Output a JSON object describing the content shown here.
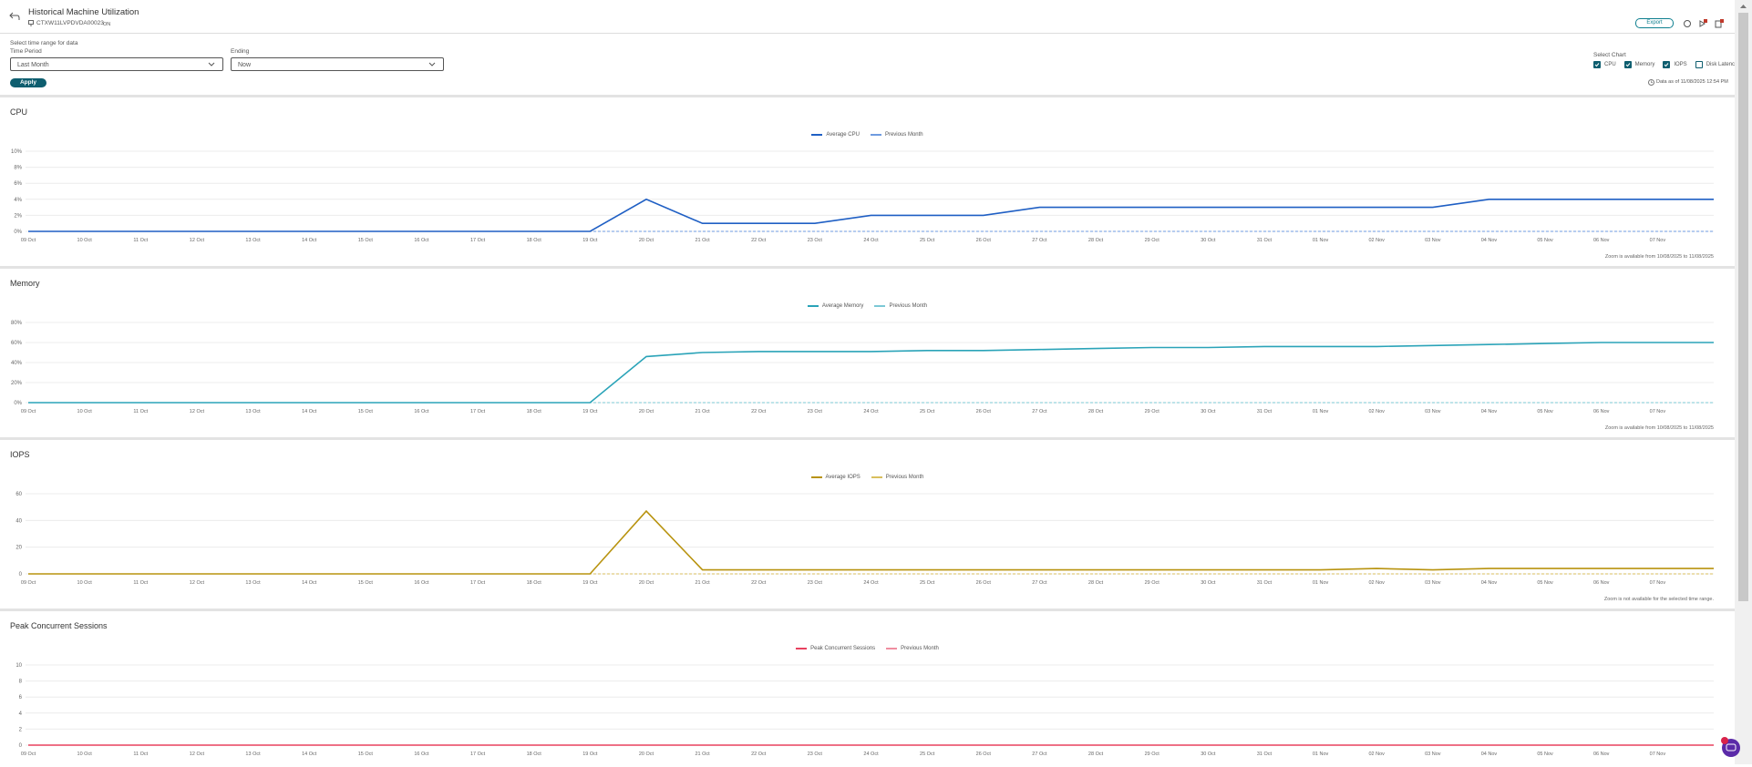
{
  "header": {
    "title": "Historical Machine Utilization",
    "machine": "CTXW11LVPDVDA00023",
    "state": "ON",
    "export": "Export"
  },
  "controls": {
    "prompt": "Select time range for data",
    "time_period": {
      "label": "Time Period",
      "value": "Last Month"
    },
    "ending": {
      "label": "Ending",
      "value": "Now"
    },
    "apply": "Apply",
    "select_chart": {
      "label": "Select Chart",
      "options": [
        {
          "label": "CPU",
          "checked": true
        },
        {
          "label": "Memory",
          "checked": true
        },
        {
          "label": "IOPS",
          "checked": true
        },
        {
          "label": "Disk Latency",
          "checked": false
        }
      ]
    },
    "data_as_of": "Data as of 11/08/2025 12:54 PM"
  },
  "chart_data": [
    {
      "type": "line",
      "title": "CPU",
      "categories": [
        "09 Oct",
        "10 Oct",
        "11 Oct",
        "12 Oct",
        "13 Oct",
        "14 Oct",
        "15 Oct",
        "16 Oct",
        "17 Oct",
        "18 Oct",
        "19 Oct",
        "20 Oct",
        "21 Oct",
        "22 Oct",
        "23 Oct",
        "24 Oct",
        "25 Oct",
        "26 Oct",
        "27 Oct",
        "28 Oct",
        "29 Oct",
        "30 Oct",
        "31 Oct",
        "01 Nov",
        "02 Nov",
        "03 Nov",
        "04 Nov",
        "05 Nov",
        "06 Nov",
        "07 Nov",
        null
      ],
      "series": [
        {
          "name": "Average CPU",
          "color": "#1f5fc4",
          "line_style": "solid",
          "values": [
            0,
            0,
            0,
            0,
            0,
            0,
            0,
            0,
            0,
            0,
            0,
            4,
            1,
            1,
            1,
            2,
            2,
            2,
            3,
            3,
            3,
            3,
            3,
            3,
            3,
            3,
            4,
            4,
            4,
            4,
            4
          ]
        },
        {
          "name": "Previous Month",
          "color": "#6f9be0",
          "line_style": "dashed",
          "values": [
            0,
            0,
            0,
            0,
            0,
            0,
            0,
            0,
            0,
            0,
            0,
            0,
            0,
            0,
            0,
            0,
            0,
            0,
            0,
            0,
            0,
            0,
            0,
            0,
            0,
            0,
            0,
            0,
            0,
            0,
            0
          ]
        }
      ],
      "ylim": [
        0,
        10
      ],
      "yticks": [
        {
          "value": 0,
          "label": "0%"
        },
        {
          "value": 2,
          "label": "2%"
        },
        {
          "value": 4,
          "label": "4%"
        },
        {
          "value": 6,
          "label": "6%"
        },
        {
          "value": 8,
          "label": "8%"
        },
        {
          "value": 10,
          "label": "10%"
        }
      ],
      "grid": true,
      "note": "Zoom is available from 10/08/2025 to 11/08/2025"
    },
    {
      "type": "line",
      "title": "Memory",
      "categories": [
        "09 Oct",
        "10 Oct",
        "11 Oct",
        "12 Oct",
        "13 Oct",
        "14 Oct",
        "15 Oct",
        "16 Oct",
        "17 Oct",
        "18 Oct",
        "19 Oct",
        "20 Oct",
        "21 Oct",
        "22 Oct",
        "23 Oct",
        "24 Oct",
        "25 Oct",
        "26 Oct",
        "27 Oct",
        "28 Oct",
        "29 Oct",
        "30 Oct",
        "31 Oct",
        "01 Nov",
        "02 Nov",
        "03 Nov",
        "04 Nov",
        "05 Nov",
        "06 Nov",
        "07 Nov",
        null
      ],
      "series": [
        {
          "name": "Average Memory",
          "color": "#2aa3b8",
          "line_style": "solid",
          "values": [
            0,
            0,
            0,
            0,
            0,
            0,
            0,
            0,
            0,
            0,
            0,
            46,
            50,
            51,
            51,
            51,
            52,
            52,
            53,
            54,
            55,
            55,
            56,
            56,
            56,
            57,
            58,
            59,
            60,
            60,
            60
          ]
        },
        {
          "name": "Previous Month",
          "color": "#7cc8d6",
          "line_style": "dashed",
          "values": [
            0,
            0,
            0,
            0,
            0,
            0,
            0,
            0,
            0,
            0,
            0,
            0,
            0,
            0,
            0,
            0,
            0,
            0,
            0,
            0,
            0,
            0,
            0,
            0,
            0,
            0,
            0,
            0,
            0,
            0,
            0
          ]
        }
      ],
      "ylim": [
        0,
        80
      ],
      "yticks": [
        {
          "value": 0,
          "label": "0%"
        },
        {
          "value": 20,
          "label": "20%"
        },
        {
          "value": 40,
          "label": "40%"
        },
        {
          "value": 60,
          "label": "60%"
        },
        {
          "value": 80,
          "label": "80%"
        }
      ],
      "grid": true,
      "note": "Zoom is available from 10/08/2025 to 11/08/2025"
    },
    {
      "type": "line",
      "title": "IOPS",
      "categories": [
        "09 Oct",
        "10 Oct",
        "11 Oct",
        "12 Oct",
        "13 Oct",
        "14 Oct",
        "15 Oct",
        "16 Oct",
        "17 Oct",
        "18 Oct",
        "19 Oct",
        "20 Oct",
        "21 Oct",
        "22 Oct",
        "23 Oct",
        "24 Oct",
        "25 Oct",
        "26 Oct",
        "27 Oct",
        "28 Oct",
        "29 Oct",
        "30 Oct",
        "31 Oct",
        "01 Nov",
        "02 Nov",
        "03 Nov",
        "04 Nov",
        "05 Nov",
        "06 Nov",
        "07 Nov",
        null
      ],
      "series": [
        {
          "name": "Average IOPS",
          "color": "#b8930f",
          "line_style": "solid",
          "values": [
            0,
            0,
            0,
            0,
            0,
            0,
            0,
            0,
            0,
            0,
            0,
            47,
            3,
            3,
            3,
            3,
            3,
            3,
            3,
            3,
            3,
            3,
            3,
            3,
            4,
            3,
            4,
            4,
            4,
            4,
            4
          ]
        },
        {
          "name": "Previous Month",
          "color": "#d9bf5e",
          "line_style": "dashed",
          "values": [
            0,
            0,
            0,
            0,
            0,
            0,
            0,
            0,
            0,
            0,
            0,
            0,
            0,
            0,
            0,
            0,
            0,
            0,
            0,
            0,
            0,
            0,
            0,
            0,
            0,
            0,
            0,
            0,
            0,
            0,
            0
          ]
        }
      ],
      "ylim": [
        0,
        60
      ],
      "yticks": [
        0,
        20,
        40,
        60
      ],
      "grid": true,
      "note": "Zoom is not available for the selected time range."
    },
    {
      "type": "line",
      "title": "Peak Concurrent Sessions",
      "categories": [
        "09 Oct",
        "10 Oct",
        "11 Oct",
        "12 Oct",
        "13 Oct",
        "14 Oct",
        "15 Oct",
        "16 Oct",
        "17 Oct",
        "18 Oct",
        "19 Oct",
        "20 Oct",
        "21 Oct",
        "22 Oct",
        "23 Oct",
        "24 Oct",
        "25 Oct",
        "26 Oct",
        "27 Oct",
        "28 Oct",
        "29 Oct",
        "30 Oct",
        "31 Oct",
        "01 Nov",
        "02 Nov",
        "03 Nov",
        "04 Nov",
        "05 Nov",
        "06 Nov",
        "07 Nov",
        null
      ],
      "series": [
        {
          "name": "Peak Concurrent Sessions",
          "color": "#e8415f",
          "line_style": "solid",
          "values": [
            0,
            0,
            0,
            0,
            0,
            0,
            0,
            0,
            0,
            0,
            0,
            0,
            0,
            0,
            0,
            0,
            0,
            0,
            0,
            0,
            0,
            0,
            0,
            0,
            0,
            0,
            0,
            0,
            0,
            0,
            0
          ]
        },
        {
          "name": "Previous Month",
          "color": "#f08ea0",
          "line_style": "dashed",
          "values": [
            0,
            0,
            0,
            0,
            0,
            0,
            0,
            0,
            0,
            0,
            0,
            0,
            0,
            0,
            0,
            0,
            0,
            0,
            0,
            0,
            0,
            0,
            0,
            0,
            0,
            0,
            0,
            0,
            0,
            0,
            0
          ]
        }
      ],
      "ylim": [
        0,
        10
      ],
      "yticks": [
        0,
        2,
        4,
        6,
        8,
        10
      ],
      "grid": true
    }
  ]
}
